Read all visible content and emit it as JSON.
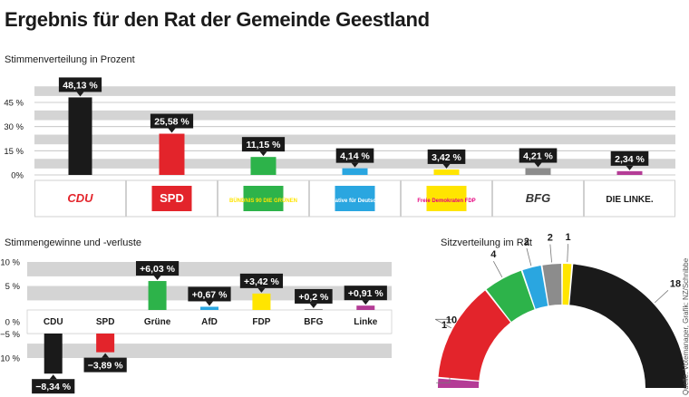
{
  "title": "Ergebnis für den Rat der Gemeinde Geestland",
  "credit": "Quelle: Votemanager, Grafik: NZ/Schnibbe",
  "colors": {
    "CDU": "#1a1a1a",
    "SPD": "#e3242b",
    "Grüne": "#2db34a",
    "AfD": "#2aa6e0",
    "FDP": "#ffe500",
    "BFG": "#8c8c8c",
    "Linke": "#b43c96",
    "band": "#d4d4d4",
    "label_bg": "#1a1a1a"
  },
  "chart_data": [
    {
      "type": "bar",
      "title": "Stimmenverteilung in Prozent",
      "categories": [
        "CDU",
        "SPD",
        "Grüne",
        "AfD",
        "FDP",
        "BFG",
        "Linke"
      ],
      "values": [
        48.13,
        25.58,
        11.15,
        4.14,
        3.42,
        4.21,
        2.34
      ],
      "value_labels": [
        "48,13 %",
        "25,58 %",
        "11,15 %",
        "4,14 %",
        "3,42 %",
        "4,21 %",
        "2,34 %"
      ],
      "yticks": [
        "0%",
        "15 %",
        "30 %",
        "45 %"
      ],
      "ytick_values": [
        0,
        15,
        30,
        45
      ],
      "ylim": [
        0,
        50
      ],
      "logos": [
        {
          "text": "CDU",
          "fg": "#e3242b",
          "bg": "#ffffff"
        },
        {
          "text": "SPD",
          "fg": "#ffffff",
          "bg": "#e3242b"
        },
        {
          "text": "BÜNDNIS 90 DIE GRÜNEN",
          "fg": "#ffe500",
          "bg": "#2db34a"
        },
        {
          "text": "Alternative für Deutschland",
          "fg": "#ffffff",
          "bg": "#2aa6e0"
        },
        {
          "text": "Freie Demokraten FDP",
          "fg": "#e6007e",
          "bg": "#ffe500"
        },
        {
          "text": "BFG",
          "fg": "#333333",
          "bg": "#ffffff"
        },
        {
          "text": "DIE LINKE.",
          "fg": "#1a1a1a",
          "bg": "#ffffff"
        }
      ]
    },
    {
      "type": "bar",
      "title": "Stimmengewinne und -verluste",
      "categories": [
        "CDU",
        "SPD",
        "Grüne",
        "AfD",
        "FDP",
        "BFG",
        "Linke"
      ],
      "values": [
        -8.34,
        -3.89,
        6.03,
        0.67,
        3.42,
        0.2,
        0.91
      ],
      "value_labels": [
        "−8,34 %",
        "−3,89 %",
        "+6,03 %",
        "+0,67 %",
        "+3,42 %",
        "+0,2 %",
        "+0,91 %"
      ],
      "yticks": [
        "10 %",
        "5 %",
        "0 %",
        "−5 %",
        "−10 %"
      ],
      "ytick_values": [
        10,
        5,
        0,
        -5,
        -10
      ],
      "ylim": [
        -10,
        10
      ]
    },
    {
      "type": "pie",
      "title": "Sitzverteilung im Rat",
      "categories": [
        "Linke",
        "SPD",
        "Grüne",
        "AfD",
        "BFG",
        "FDP",
        "CDU"
      ],
      "values": [
        1,
        10,
        4,
        2,
        2,
        1,
        18
      ]
    }
  ]
}
